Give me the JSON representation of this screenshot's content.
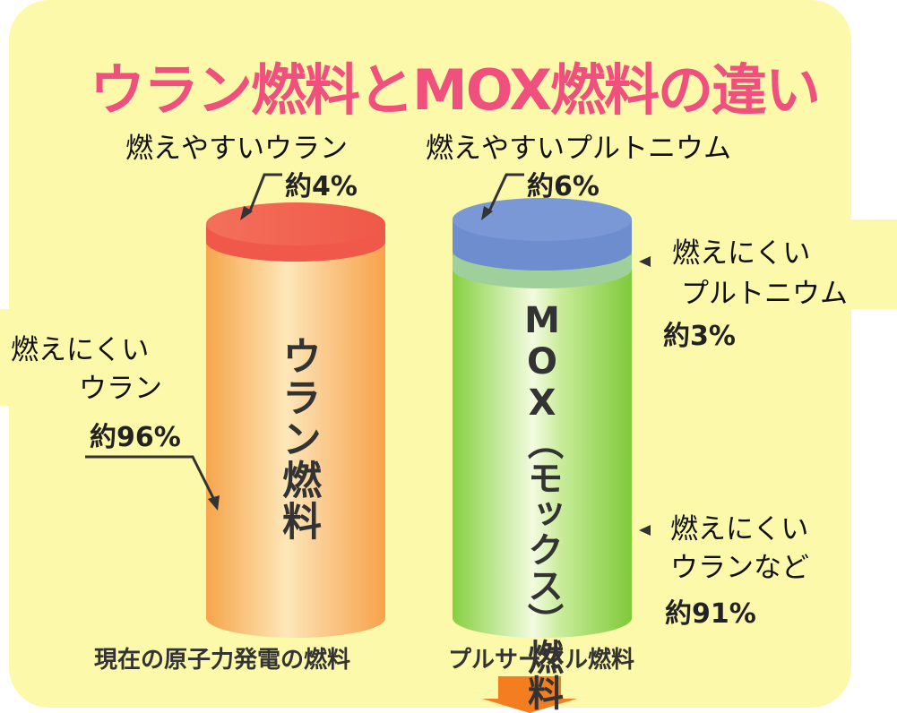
{
  "title": "ウラン燃料とMOX燃料の違い",
  "uranium_fuel": {
    "label": "ウラン燃料",
    "caption": "現在の原子力発電の燃料",
    "fissile": {
      "name": "燃えやすいウラン",
      "share": "約4%"
    },
    "non_fissile": {
      "name_lines": [
        "燃えにくい",
        "ウラン"
      ],
      "share": "約96%"
    }
  },
  "mox_fuel": {
    "label": "MOX（モックス）燃料",
    "caption": "プルサーマル燃料",
    "fissile": {
      "name": "燃えやすいプルトニウム",
      "share": "約6%"
    },
    "non_fissile_plutonium": {
      "name_lines": [
        "燃えにくい",
        "プルトニウム"
      ],
      "share": "約3%"
    },
    "non_fissile_uranium": {
      "name_lines": [
        "燃えにくい",
        "ウランなど"
      ],
      "share": "約91%"
    }
  }
}
